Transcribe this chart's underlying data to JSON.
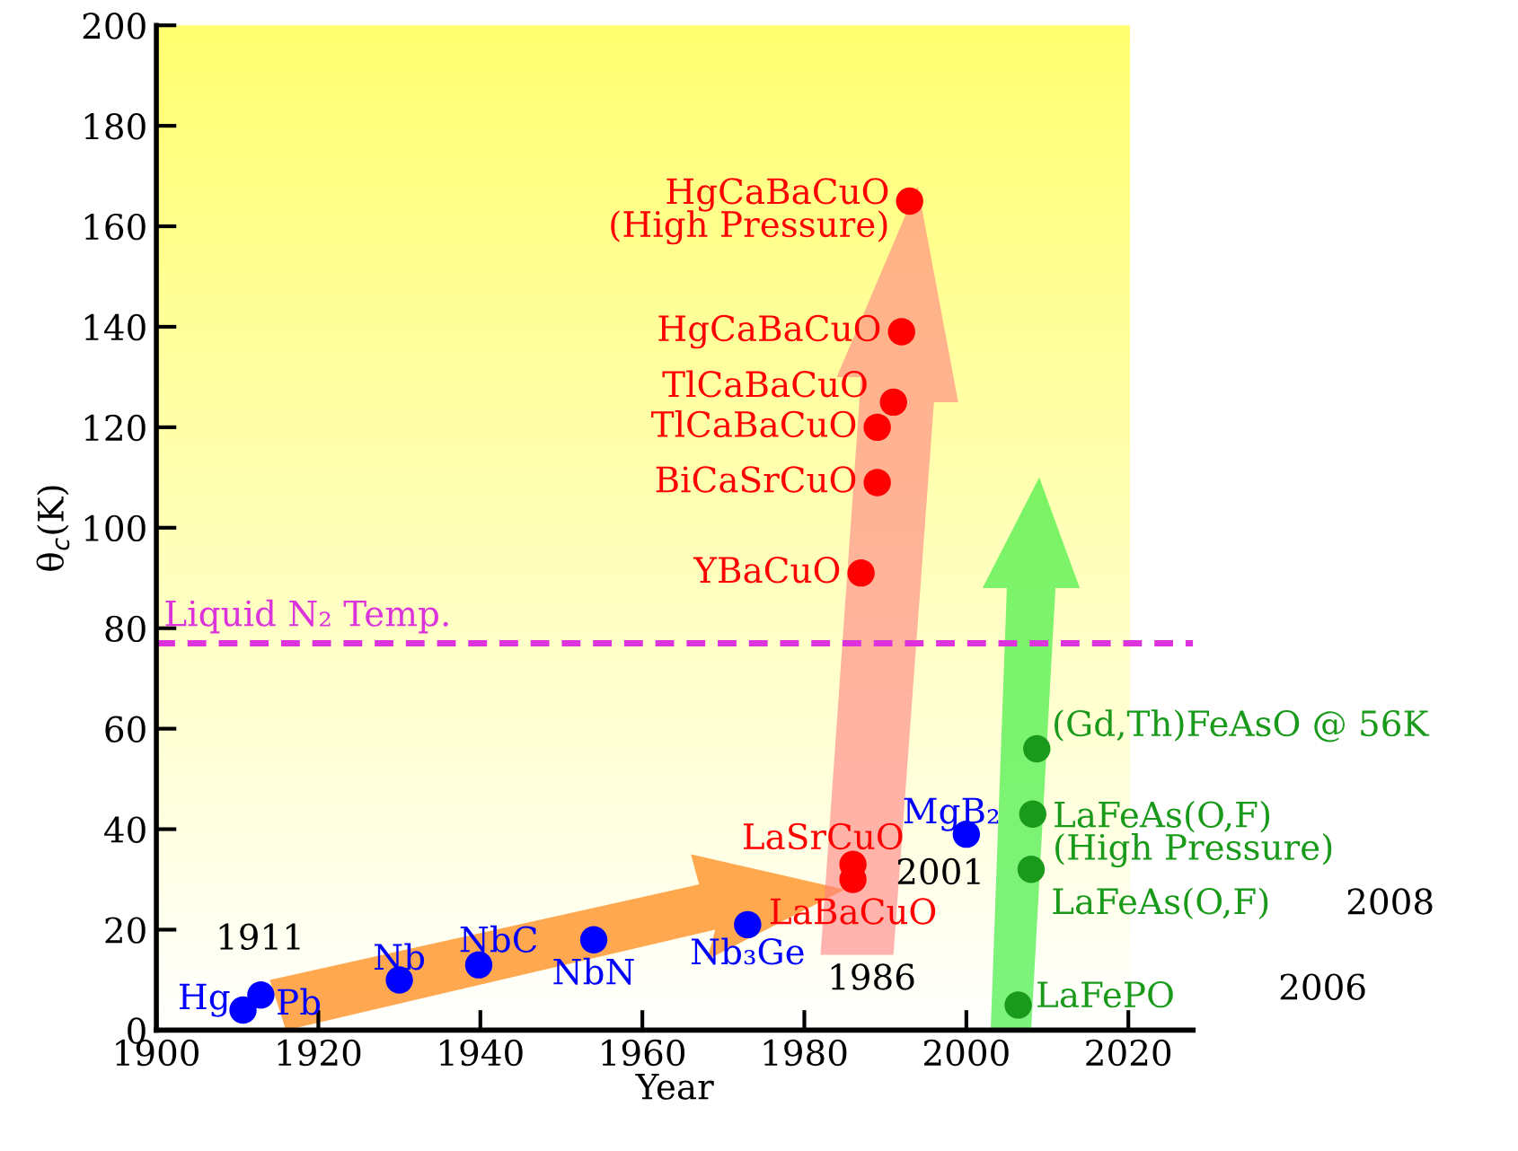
{
  "chart_data": {
    "type": "scatter",
    "xlabel": "Year",
    "ylabel": "θ$_{c}$(K)",
    "xlim": [
      1900,
      2028
    ],
    "xticks": [
      1900,
      1920,
      1940,
      1960,
      1980,
      2000,
      2020
    ],
    "ylim": [
      0,
      200
    ],
    "yticks": [
      0,
      20,
      40,
      60,
      80,
      100,
      120,
      140,
      160,
      180,
      200
    ],
    "grid": false,
    "legend": false,
    "marker": "circle",
    "series": [
      {
        "color": "#0000ff",
        "x": [
          1910.7,
          1912.9,
          1930,
          1939.8,
          1954,
          1973,
          2000
        ],
        "values": [
          4,
          7,
          10,
          13,
          18,
          21,
          39
        ],
        "value_labels": [
          "Hg",
          "Pb",
          "Nb",
          "NbC",
          "NbN",
          "Nb₃Ge",
          "MgB₂"
        ]
      },
      {
        "color": "#ff0000",
        "x": [
          1986,
          1986,
          1987,
          1989,
          1989,
          1991,
          1992,
          1993
        ],
        "values": [
          30,
          33,
          91,
          109,
          120,
          125,
          139,
          165
        ],
        "value_labels": [
          "LaBaCuO",
          "LaSrCuO",
          "YBaCuO",
          "BiCaSrCuO",
          "TlCaBaCuO",
          "TlCaBaCuO",
          "HgCaBaCuO",
          "HgCaBaCuO\n(High Pressure)"
        ]
      },
      {
        "color": "#1a9a1a",
        "x": [
          2006.4,
          2008,
          2008.2,
          2008.7
        ],
        "values": [
          5,
          32,
          43,
          56
        ],
        "value_labels": [
          "LaFePO",
          "LaFeAs(O,F)",
          "LaFeAs(O,F)\n(High Pressure)",
          "(Gd,Th)FeAsO @ 56K"
        ]
      }
    ],
    "ref_lines": [
      {
        "axis": "y",
        "value": 77,
        "label": "Liquid N₂ Temp.",
        "color": "#dd33dd",
        "line_style": "dashed"
      }
    ],
    "annotations": [
      "1911",
      "1986",
      "2001",
      "2008",
      "2006"
    ]
  }
}
